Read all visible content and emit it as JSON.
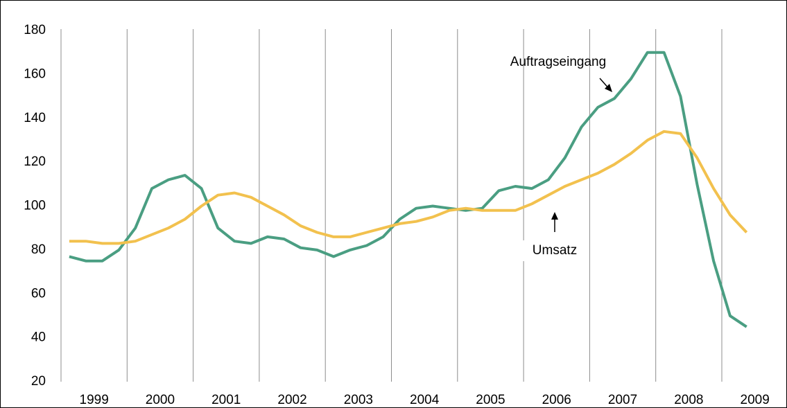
{
  "chart_data": {
    "type": "line",
    "categories": [
      null,
      "1999",
      null,
      null,
      null,
      "2000",
      null,
      null,
      null,
      "2001",
      null,
      null,
      null,
      "2002",
      null,
      null,
      null,
      "2003",
      null,
      null,
      null,
      "2004",
      null,
      null,
      null,
      "2005",
      null,
      null,
      null,
      "2006",
      null,
      null,
      null,
      "2007",
      null,
      null,
      null,
      "2008",
      null,
      null,
      null,
      "2009"
    ],
    "series": [
      {
        "name": "Auftragseingang",
        "color": "#4a9e82",
        "values": [
          77,
          75,
          75,
          80,
          90,
          108,
          112,
          114,
          108,
          90,
          84,
          83,
          86,
          85,
          81,
          80,
          77,
          80,
          82,
          86,
          94,
          99,
          100,
          99,
          98,
          99,
          107,
          109,
          108,
          112,
          122,
          136,
          145,
          149,
          158,
          170,
          170,
          150,
          110,
          75,
          50,
          45
        ]
      },
      {
        "name": "Umsatz",
        "color": "#f2c14e",
        "values": [
          84,
          84,
          83,
          83,
          84,
          87,
          90,
          94,
          100,
          105,
          106,
          104,
          100,
          96,
          91,
          88,
          86,
          86,
          88,
          90,
          92,
          93,
          95,
          98,
          99,
          98,
          98,
          98,
          101,
          105,
          109,
          112,
          115,
          119,
          124,
          130,
          134,
          133,
          122,
          108,
          96,
          88
        ]
      }
    ],
    "ylim": [
      20,
      180
    ],
    "yticks": [
      20,
      40,
      60,
      80,
      100,
      120,
      140,
      160,
      180
    ]
  }
}
